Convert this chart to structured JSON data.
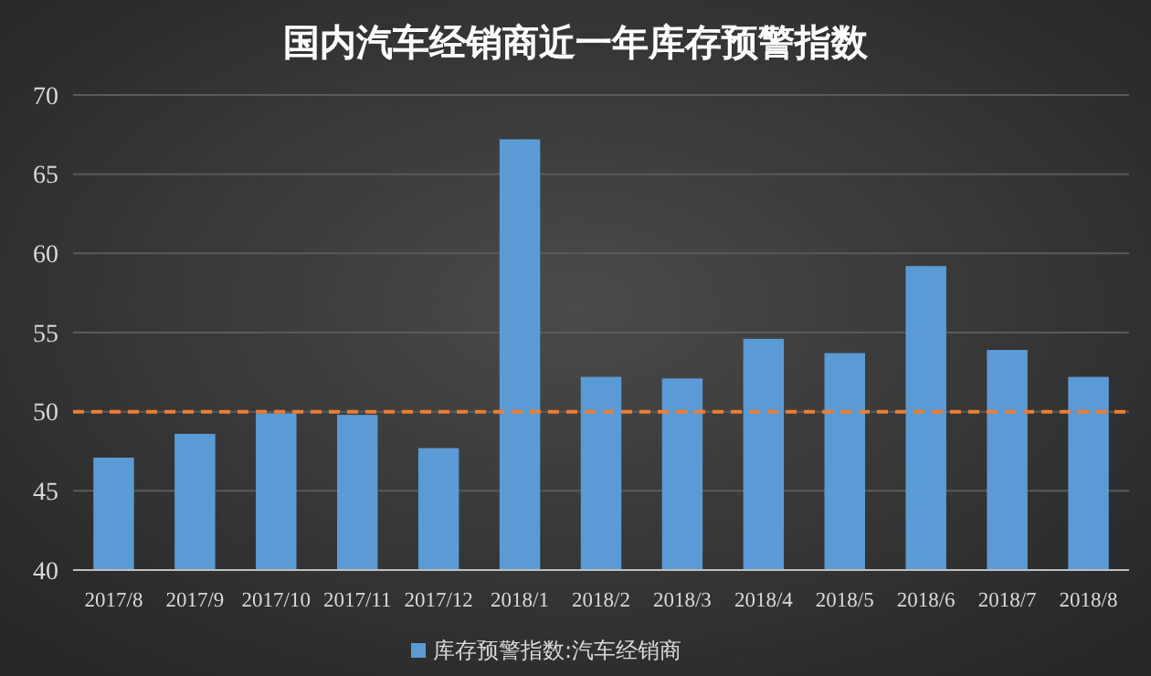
{
  "chart_data": {
    "type": "bar",
    "title": "国内汽车经销商近一年库存预警指数",
    "categories": [
      "2017/8",
      "2017/9",
      "2017/10",
      "2017/11",
      "2017/12",
      "2018/1",
      "2018/2",
      "2018/3",
      "2018/4",
      "2018/5",
      "2018/6",
      "2018/7",
      "2018/8"
    ],
    "series": [
      {
        "name": "库存预警指数:汽车经销商",
        "color": "#5b9bd5",
        "values": [
          47.1,
          48.6,
          49.9,
          49.8,
          47.7,
          67.2,
          52.2,
          52.1,
          54.6,
          53.7,
          59.2,
          53.9,
          52.2
        ]
      }
    ],
    "ylim": [
      40,
      70
    ],
    "yticks": [
      40,
      45,
      50,
      55,
      60,
      65,
      70
    ],
    "grid": "y",
    "legend": "bottom",
    "ref_lines": [
      {
        "axis": "y",
        "value": 50,
        "color": "#ed7d31",
        "line_style": "dashed"
      }
    ]
  }
}
